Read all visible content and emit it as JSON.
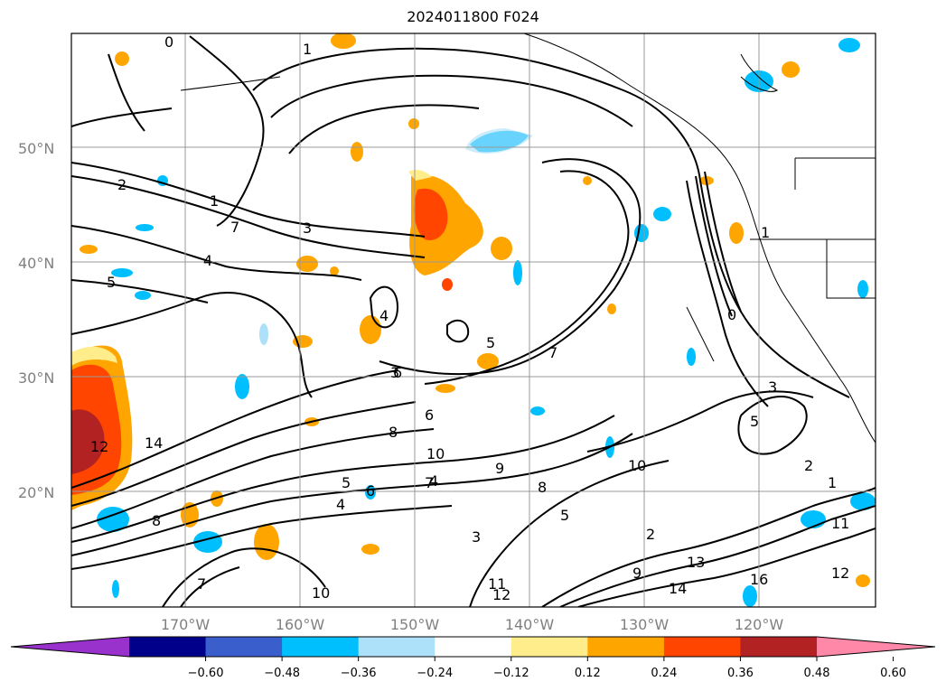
{
  "title": "2024011800 F024",
  "map": {
    "lat_labels": [
      "50°N",
      "40°N",
      "30°N",
      "20°N"
    ],
    "lon_labels": [
      "170°W",
      "160°W",
      "150°W",
      "140°W",
      "130°W",
      "120°W"
    ],
    "contour_labels": [
      "0",
      "1",
      "2",
      "1",
      "7",
      "3",
      "4",
      "5",
      "6",
      "4",
      "5",
      "6",
      "7",
      "8",
      "10",
      "9",
      "7",
      "5",
      "4",
      "3",
      "2",
      "1",
      "0",
      "3",
      "5",
      "8",
      "10",
      "12",
      "14",
      "13",
      "11",
      "12",
      "14",
      "16",
      "12",
      "11",
      "10",
      "9",
      "8",
      "7",
      "6",
      "5",
      "4",
      "3",
      "2",
      "1"
    ]
  },
  "colorbar": {
    "ticks": [
      "−0.60",
      "−0.48",
      "−0.36",
      "−0.24",
      "−0.12",
      "0.12",
      "0.24",
      "0.36",
      "0.48",
      "0.60"
    ],
    "colors": [
      "#9932CC",
      "#00008B",
      "#3A5FCD",
      "#00BFFF",
      "#ADE1FA",
      "#FFFFFF",
      "#FFEC8B",
      "#FFA500",
      "#FF4500",
      "#B22222",
      "#FF88A8"
    ]
  }
}
